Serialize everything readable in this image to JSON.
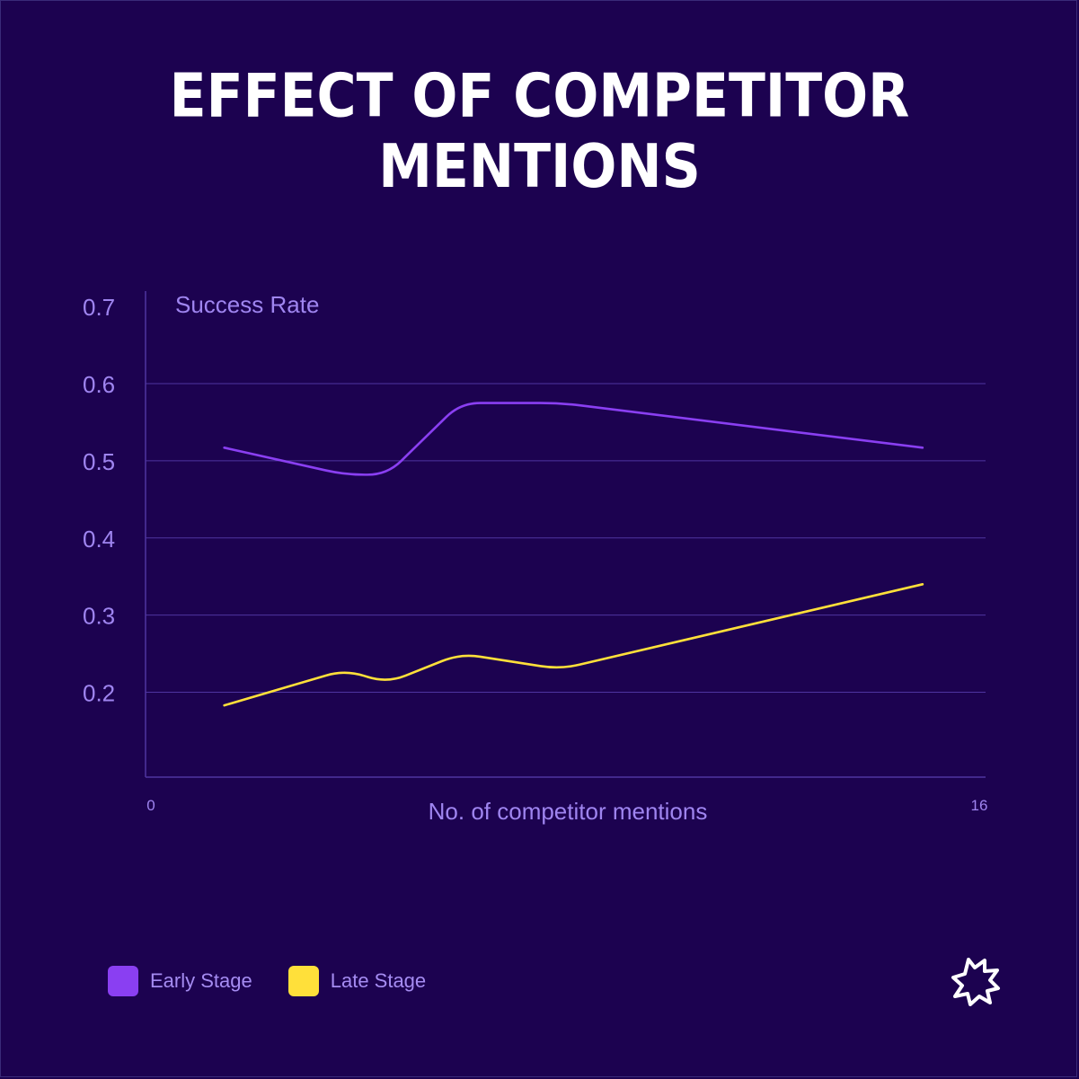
{
  "colors": {
    "background": "#1c0250",
    "axis_text": "#9f85f0",
    "grid": "#4e34a0",
    "early": "#8a3ff2",
    "late": "#ffe03a",
    "title": "#ffffff"
  },
  "logo": {
    "icon": "burst-star-icon"
  },
  "chart_data": {
    "type": "line",
    "title": "EFFECT OF COMPETITOR MENTIONS",
    "ylabel": "Success Rate",
    "xlabel": "No. of competitor mentions",
    "xlim": [
      0,
      16
    ],
    "ylim": [
      0.09,
      0.72
    ],
    "x_tick_labels": [
      "0",
      "16"
    ],
    "y_ticks": [
      0.2,
      0.3,
      0.4,
      0.5,
      0.6,
      0.7
    ],
    "y_tick_labels": [
      "0.2",
      "0.3",
      "0.4",
      "0.5",
      "0.6",
      "0.7"
    ],
    "grid": true,
    "legend_position": "bottom-left",
    "series": [
      {
        "name": "Early Stage",
        "color": "#8a3ff2",
        "x": [
          1.5,
          3.8,
          4.6,
          6,
          7.9,
          14.8
        ],
        "y": [
          0.517,
          0.482,
          0.482,
          0.575,
          0.575,
          0.517
        ]
      },
      {
        "name": "Late Stage",
        "color": "#ffe03a",
        "x": [
          1.5,
          3.8,
          4.6,
          6,
          7.9,
          14.8
        ],
        "y": [
          0.183,
          0.229,
          0.212,
          0.25,
          0.23,
          0.34
        ]
      }
    ]
  }
}
